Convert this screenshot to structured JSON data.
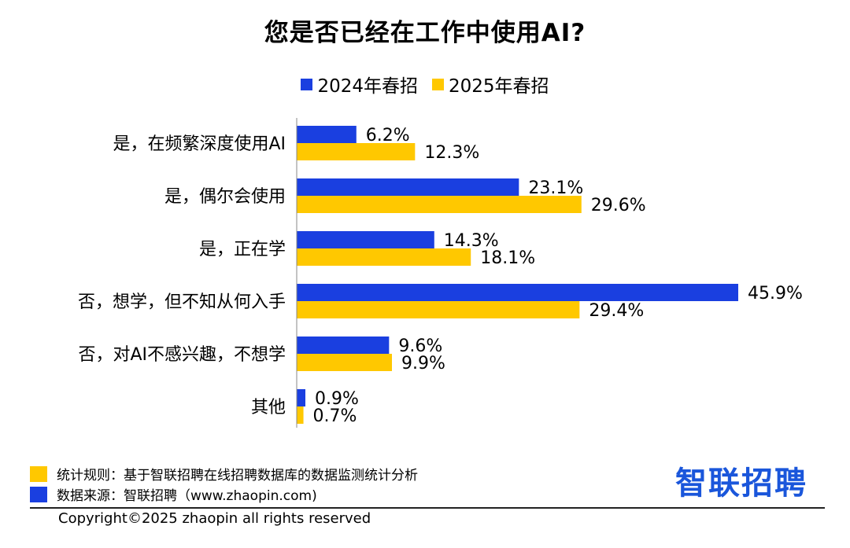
{
  "chart_data": {
    "type": "bar",
    "orientation": "horizontal",
    "title": "您是否已经在工作中使用AI?",
    "categories": [
      "是，在频繁深度使用AI",
      "是，偶尔会使用",
      "是，正在学",
      "否，想学，但不知从何入手",
      "否，对AI不感兴趣，不想学",
      "其他"
    ],
    "series": [
      {
        "name": "2024年春招",
        "color": "#1a3fe0",
        "values": [
          6.2,
          23.1,
          14.3,
          45.9,
          9.6,
          0.9
        ],
        "labels": [
          "6.2%",
          "23.1%",
          "14.3%",
          "45.9%",
          "9.6%",
          "0.9%"
        ]
      },
      {
        "name": "2025年春招",
        "color": "#ffc800",
        "values": [
          12.3,
          29.6,
          18.1,
          29.4,
          9.9,
          0.7
        ],
        "labels": [
          "12.3%",
          "29.6%",
          "18.1%",
          "29.4%",
          "9.9%",
          "0.7%"
        ]
      }
    ],
    "xlim": [
      0,
      50
    ],
    "grid": false,
    "legend_position": "top-center"
  },
  "footer": {
    "rule_note": "统计规则：基于智联招聘在线招聘数据库的数据监测统计分析",
    "source_note": "数据来源：智联招聘（www.zhaopin.com)",
    "copyright": "Copyright©2025 zhaopin all rights reserved",
    "brand": "智联招聘"
  }
}
